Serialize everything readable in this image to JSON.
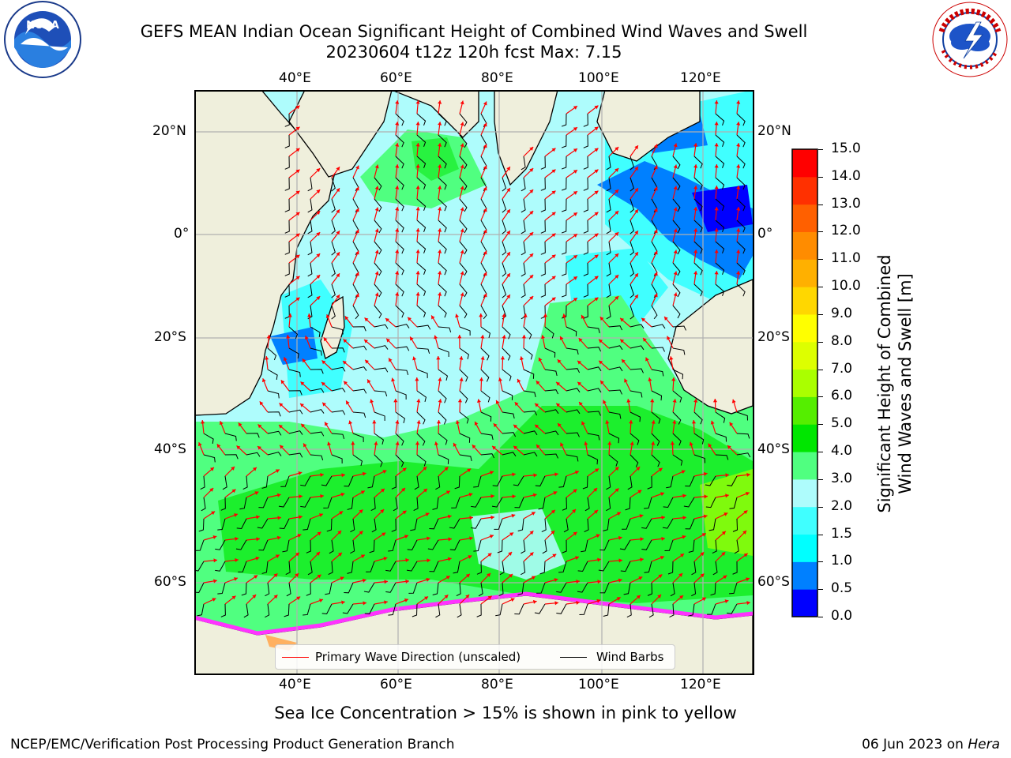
{
  "header": {
    "title_line1": "GEFS MEAN Indian Ocean Significant Height of Combined Wind Waves and Swell",
    "title_line2": "20230604 t12z 120h fcst   Max: 7.15"
  },
  "logos": {
    "noaa_text": "NOAA",
    "noaa_ring_text": "NATIONAL OCEANIC AND ATMOSPHERIC ADMINISTRATION · U.S. DEPARTMENT OF COMMERCE",
    "nws_ring_text": "NATIONAL WEATHER SERVICE"
  },
  "map": {
    "lon_labels": [
      "40°E",
      "60°E",
      "80°E",
      "100°E",
      "120°E"
    ],
    "lon_values": [
      40,
      60,
      80,
      100,
      120
    ],
    "lat_labels": [
      "20°N",
      "0°",
      "20°S",
      "40°S",
      "60°S"
    ],
    "lat_values": [
      20,
      0,
      -20,
      -40,
      -60
    ],
    "land_color": "#efefdc",
    "ocean_color": "#aefcfc",
    "ice_color": "#ff33ff"
  },
  "legend": {
    "wave_label": "Primary Wave Direction (unscaled)",
    "wave_color": "#ff0000",
    "barb_label": "Wind Barbs",
    "barb_color": "#000000"
  },
  "colorbar": {
    "label_line1": "Significant Height of Combined",
    "label_line2": "Wind Waves and Swell [m]",
    "ticks": [
      "0.0",
      "0.5",
      "1.0",
      "1.5",
      "2.0",
      "3.0",
      "4.0",
      "5.0",
      "6.0",
      "7.0",
      "8.0",
      "9.0",
      "10.0",
      "11.0",
      "12.0",
      "13.0",
      "14.0",
      "15.0"
    ],
    "colors": [
      "#0000ff",
      "#0080ff",
      "#00ffff",
      "#40ffff",
      "#aefcfc",
      "#50ff80",
      "#00e600",
      "#55ee00",
      "#aaff00",
      "#ddff00",
      "#ffff00",
      "#ffd700",
      "#ffb000",
      "#ff8c00",
      "#ff6000",
      "#ff3000",
      "#ff0000"
    ]
  },
  "footer": {
    "ice_note": "Sea Ice Concentration > 15% is shown in pink to yellow",
    "credit": "NCEP/EMC/Verification Post Processing Product Generation Branch",
    "date": "06 Jun 2023 on ",
    "host": "Hera"
  }
}
